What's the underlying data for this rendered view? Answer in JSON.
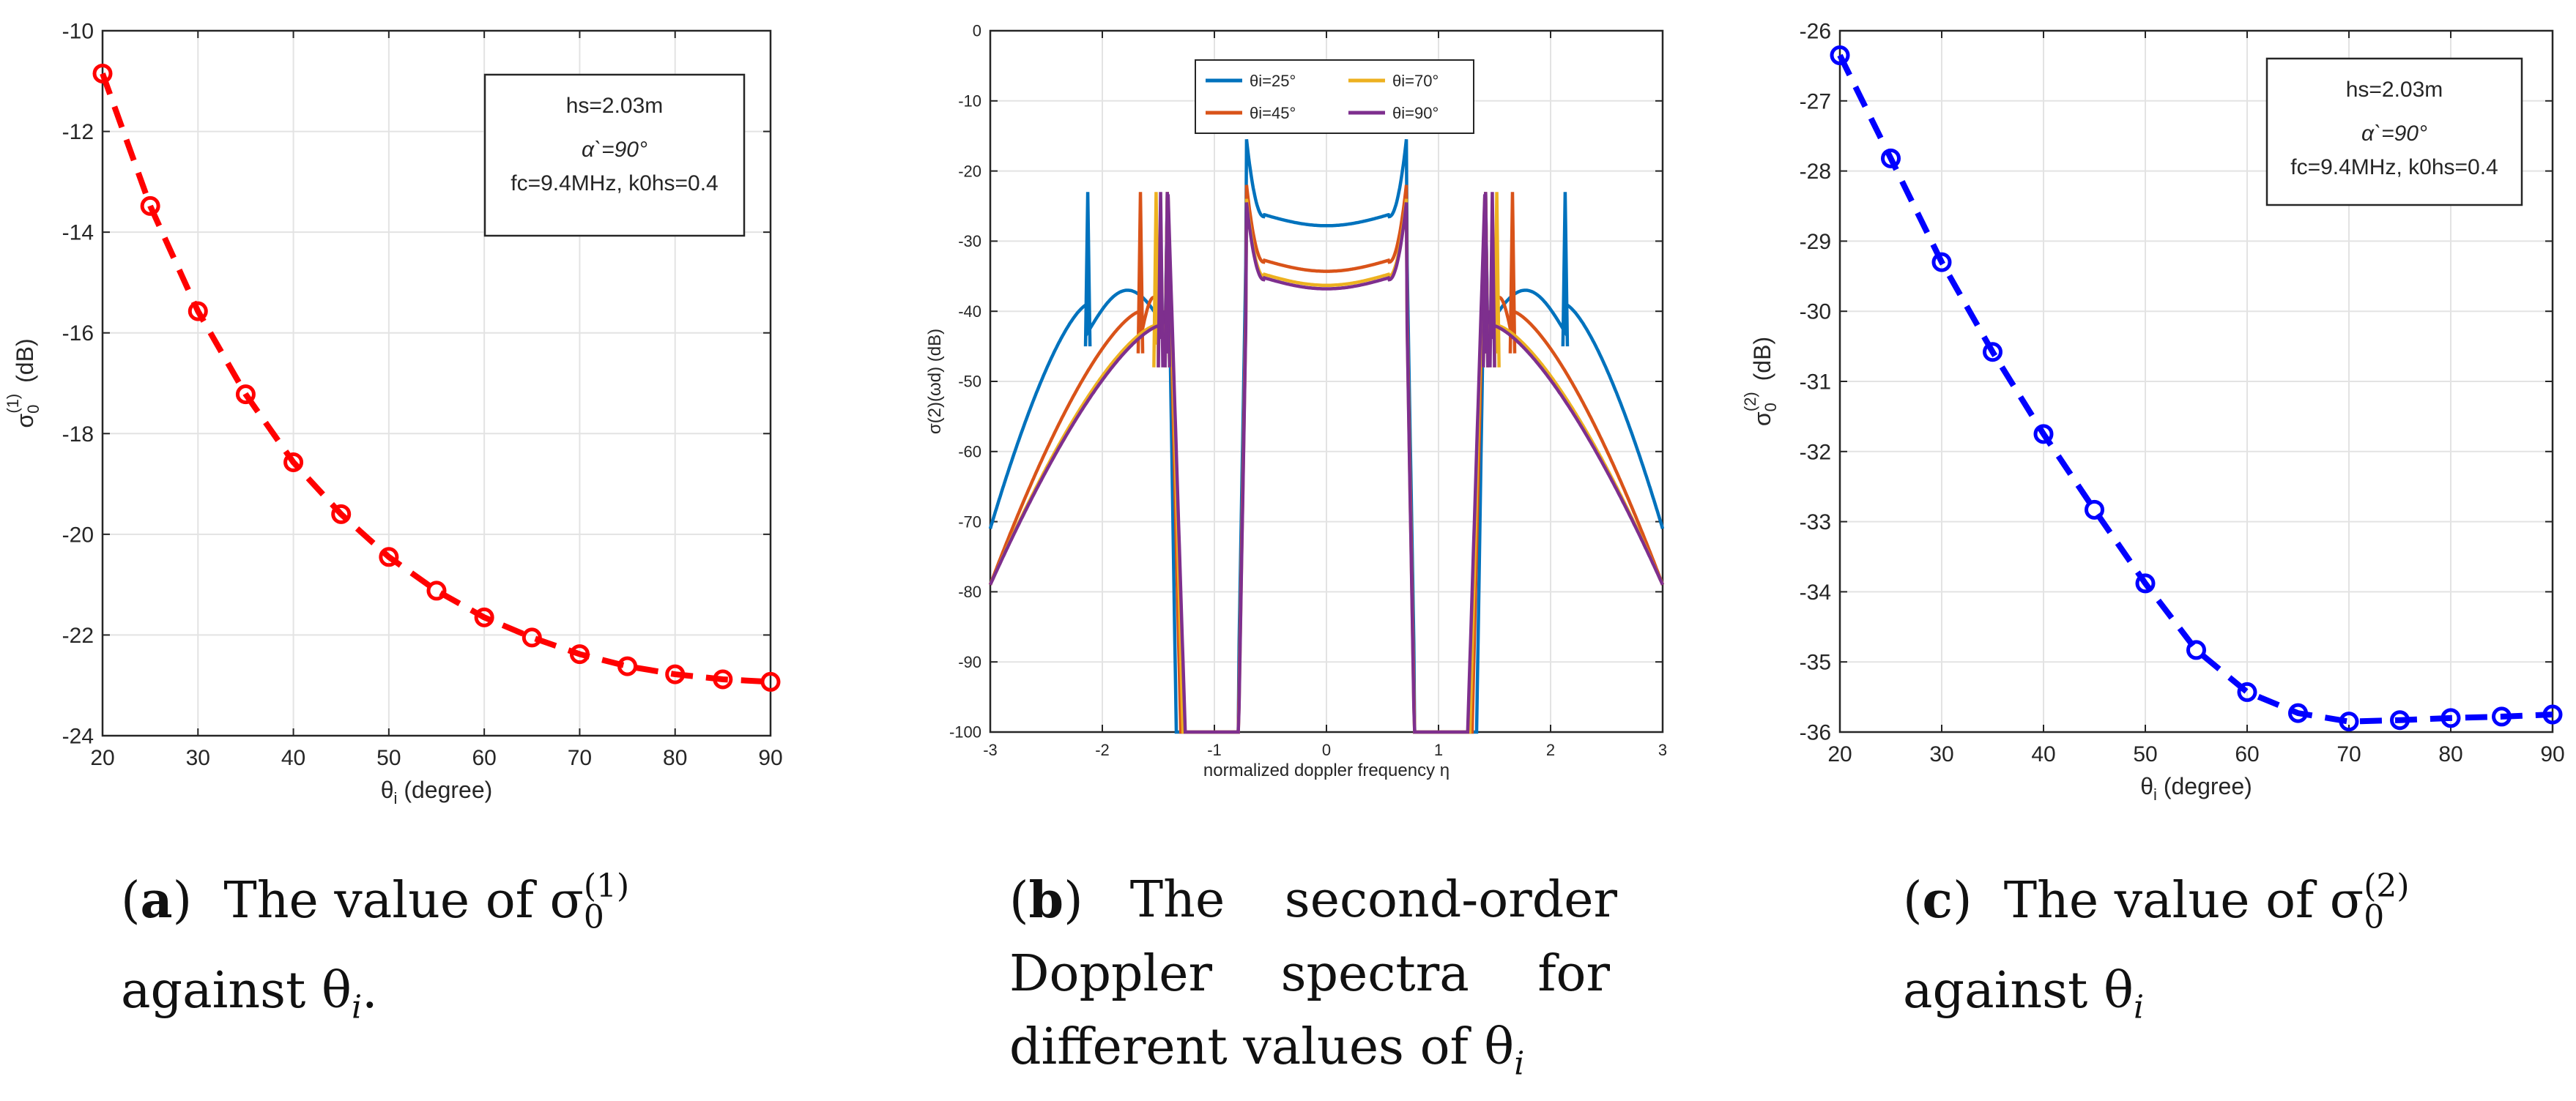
{
  "chart_data": [
    {
      "id": "a",
      "type": "line",
      "marker": "circle",
      "color": "#ff0000",
      "x": [
        20,
        25,
        30,
        35,
        40,
        45,
        50,
        55,
        60,
        65,
        70,
        75,
        80,
        85,
        90
      ],
      "values": [
        -10.85,
        -13.48,
        -15.57,
        -17.22,
        -18.57,
        -19.6,
        -20.45,
        -21.12,
        -21.65,
        -22.05,
        -22.38,
        -22.62,
        -22.78,
        -22.88,
        -22.93
      ],
      "xlim": [
        20,
        90
      ],
      "ylim": [
        -24,
        -10
      ],
      "xticks": [
        20,
        30,
        40,
        50,
        60,
        70,
        80,
        90
      ],
      "yticks": [
        -24,
        -22,
        -20,
        -18,
        -16,
        -14,
        -12,
        -10
      ],
      "ylabel_base": "σ",
      "ylabel_sub": "0",
      "ylabel_sup": "(1)",
      "ylabel_unit": "(dB)",
      "xlabel_base": "θ",
      "xlabel_sub": "i",
      "xlabel_rest": " (degree)",
      "legend": [
        "hs=2.03m",
        "α`=90°",
        "fc=9.4MHz, k0hs=0.4"
      ],
      "grid": true
    },
    {
      "id": "b",
      "type": "line",
      "xlim": [
        -3,
        3
      ],
      "ylim": [
        -100,
        0
      ],
      "xticks": [
        -3,
        -2,
        -1,
        0,
        1,
        2,
        3
      ],
      "yticks": [
        -100,
        -90,
        -80,
        -70,
        -60,
        -50,
        -40,
        -30,
        -20,
        -10,
        0
      ],
      "xlabel": "normalized doppler frequency η",
      "ylabel": "σ(2)(ωd) (dB)",
      "legend_position": "top-center",
      "series": [
        {
          "name": "θi=25°",
          "color": "#0072BD",
          "band_gap": 1.34,
          "peak_inner": 1.42,
          "peak_outer": 2.13,
          "mid_level": -27.5,
          "side_level": -37,
          "inner_base": -45,
          "tail_end": -71
        },
        {
          "name": "θi=45°",
          "color": "#D95319",
          "band_gap": 1.3,
          "peak_inner": 1.42,
          "peak_outer": 1.66,
          "mid_level": -34,
          "side_level": -38,
          "inner_base": -48,
          "tail_end": -79
        },
        {
          "name": "θi=70°",
          "color": "#EDB120",
          "band_gap": 1.28,
          "peak_inner": 1.42,
          "peak_outer": 1.52,
          "mid_level": -36,
          "side_level": -40,
          "inner_base": -48,
          "tail_end": -79
        },
        {
          "name": "θi=90°",
          "color": "#7E2F8E",
          "band_gap": 1.26,
          "peak_inner": 1.42,
          "peak_outer": 1.48,
          "mid_level": -36.5,
          "side_level": -40,
          "inner_base": -47,
          "tail_end": -79
        }
      ],
      "grid": true
    },
    {
      "id": "c",
      "type": "line",
      "marker": "circle",
      "color": "#0000ff",
      "x": [
        20,
        25,
        30,
        35,
        40,
        45,
        50,
        55,
        60,
        65,
        70,
        75,
        80,
        85,
        90
      ],
      "values": [
        -26.35,
        -27.82,
        -29.3,
        -30.58,
        -31.75,
        -32.83,
        -33.88,
        -34.83,
        -35.43,
        -35.73,
        -35.85,
        -35.83,
        -35.8,
        -35.78,
        -35.75
      ],
      "xlim": [
        20,
        90
      ],
      "ylim": [
        -36,
        -26
      ],
      "xticks": [
        20,
        30,
        40,
        50,
        60,
        70,
        80,
        90
      ],
      "yticks": [
        -36,
        -35,
        -34,
        -33,
        -32,
        -31,
        -30,
        -29,
        -28,
        -27,
        -26
      ],
      "ylabel_base": "σ",
      "ylabel_sub": "0",
      "ylabel_sup": "(2)",
      "ylabel_unit": "(dB)",
      "xlabel_base": "θ",
      "xlabel_sub": "i",
      "xlabel_rest": " (degree)",
      "legend": [
        "hs=2.03m",
        "α`=90°",
        "fc=9.4MHz, k0hs=0.4"
      ],
      "grid": true
    }
  ],
  "captions": {
    "a": {
      "tag": "a",
      "line1": "The value of σ",
      "sub": "0",
      "sup": "(1)",
      "line2": "against θ",
      "var_sub": "i",
      "tail": "."
    },
    "b": {
      "tag": "b",
      "line1": "The second-order",
      "line2": "Doppler spectra for",
      "line3": "different values of θ",
      "var_sub": "i"
    },
    "c": {
      "tag": "c",
      "line1": "The value of σ",
      "sub": "0",
      "sup": "(2)",
      "line2": "against θ",
      "var_sub": "i",
      "tail": ""
    }
  }
}
